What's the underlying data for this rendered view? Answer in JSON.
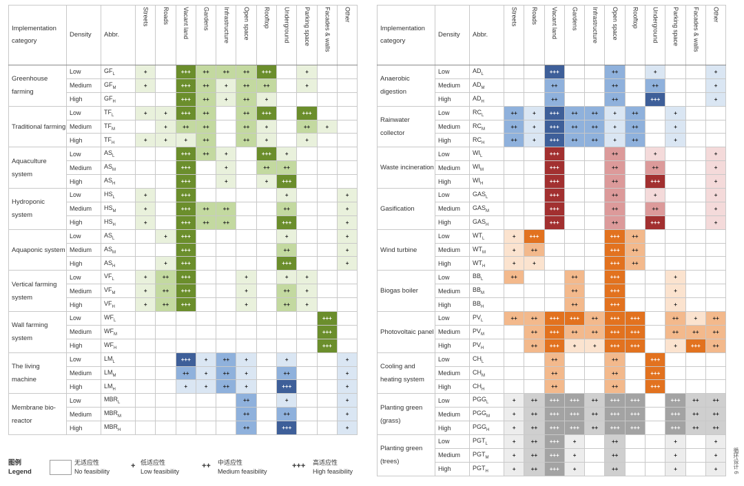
{
  "columns": [
    "Streets",
    "Roads",
    "Vacant land",
    "Gardens",
    "Infrastructure",
    "Open space",
    "Rooftop",
    "Underground",
    "Parking space",
    "Facades & walls",
    "Other"
  ],
  "header": {
    "category": "Implementation category",
    "density": "Density",
    "abbr": "Abbr."
  },
  "colors": {
    "green": [
      "#ffffff",
      "#e9f1dc",
      "#c3d9a0",
      "#6b8e2c"
    ],
    "blue": [
      "#ffffff",
      "#dae6f3",
      "#8fb1dc",
      "#3e5f99"
    ],
    "red": [
      "#ffffff",
      "#f4dada",
      "#dc9a9a",
      "#a23030"
    ],
    "orange": [
      "#ffffff",
      "#fbe3cf",
      "#f3b98c",
      "#e2721f"
    ],
    "gray": [
      "#ffffff",
      "#ededed",
      "#cfcfcf",
      "#a3a3a3"
    ]
  },
  "symbols": [
    "",
    "+",
    "++",
    "+++"
  ],
  "left_groups": [
    {
      "name": "Greenhouse farming",
      "color": "green",
      "rows": [
        {
          "density": "Low",
          "abbr": "GF",
          "sub": "L",
          "values": [
            1,
            0,
            3,
            2,
            2,
            2,
            3,
            0,
            1,
            0,
            0
          ]
        },
        {
          "density": "Medium",
          "abbr": "GF",
          "sub": "M",
          "values": [
            1,
            0,
            3,
            2,
            1,
            2,
            2,
            0,
            1,
            0,
            0
          ]
        },
        {
          "density": "High",
          "abbr": "GF",
          "sub": "H",
          "values": [
            0,
            0,
            3,
            2,
            1,
            2,
            1,
            0,
            0,
            0,
            0
          ]
        }
      ]
    },
    {
      "name": "Traditional farming",
      "color": "green",
      "rows": [
        {
          "density": "Low",
          "abbr": "TF",
          "sub": "L",
          "values": [
            1,
            1,
            3,
            2,
            0,
            2,
            3,
            0,
            3,
            0,
            0
          ]
        },
        {
          "density": "Medium",
          "abbr": "TF",
          "sub": "M",
          "values": [
            0,
            1,
            2,
            2,
            0,
            2,
            1,
            0,
            2,
            1,
            0
          ]
        },
        {
          "density": "High",
          "abbr": "TF",
          "sub": "H",
          "values": [
            1,
            1,
            1,
            2,
            0,
            2,
            1,
            0,
            1,
            0,
            0
          ]
        }
      ]
    },
    {
      "name": "Aquaculture system",
      "color": "green",
      "rows": [
        {
          "density": "Low",
          "abbr": "AS",
          "sub": "L",
          "values": [
            0,
            0,
            3,
            2,
            1,
            0,
            3,
            1,
            0,
            0,
            0
          ]
        },
        {
          "density": "Medium",
          "abbr": "AS",
          "sub": "M",
          "values": [
            0,
            0,
            3,
            0,
            1,
            0,
            2,
            2,
            0,
            0,
            0
          ]
        },
        {
          "density": "High",
          "abbr": "AS",
          "sub": "H",
          "values": [
            0,
            0,
            3,
            0,
            1,
            0,
            1,
            3,
            0,
            0,
            0
          ]
        }
      ]
    },
    {
      "name": "Hydroponic system",
      "color": "green",
      "rows": [
        {
          "density": "Low",
          "abbr": "HS",
          "sub": "L",
          "values": [
            1,
            0,
            3,
            0,
            0,
            0,
            0,
            1,
            0,
            0,
            1
          ]
        },
        {
          "density": "Medium",
          "abbr": "HS",
          "sub": "M",
          "values": [
            1,
            0,
            3,
            2,
            2,
            0,
            0,
            2,
            0,
            0,
            1
          ]
        },
        {
          "density": "High",
          "abbr": "HS",
          "sub": "H",
          "values": [
            1,
            0,
            3,
            2,
            2,
            0,
            0,
            3,
            0,
            0,
            1
          ]
        }
      ]
    },
    {
      "name": "Aquaponic system",
      "color": "green",
      "rows": [
        {
          "density": "Low",
          "abbr": "AS",
          "sub": "L",
          "values": [
            0,
            1,
            3,
            0,
            0,
            0,
            0,
            1,
            0,
            0,
            1
          ]
        },
        {
          "density": "Medium",
          "abbr": "AS",
          "sub": "M",
          "values": [
            0,
            0,
            3,
            0,
            0,
            0,
            0,
            2,
            0,
            0,
            1
          ]
        },
        {
          "density": "High",
          "abbr": "AS",
          "sub": "H",
          "values": [
            0,
            1,
            3,
            0,
            0,
            0,
            0,
            3,
            0,
            0,
            1
          ]
        }
      ]
    },
    {
      "name": "Vertical farming system",
      "color": "green",
      "rows": [
        {
          "density": "Low",
          "abbr": "VF",
          "sub": "L",
          "values": [
            1,
            2,
            3,
            0,
            0,
            1,
            0,
            1,
            1,
            0,
            0
          ]
        },
        {
          "density": "Medium",
          "abbr": "VF",
          "sub": "M",
          "values": [
            1,
            2,
            3,
            0,
            0,
            1,
            0,
            2,
            1,
            0,
            0
          ]
        },
        {
          "density": "High",
          "abbr": "VF",
          "sub": "H",
          "values": [
            1,
            2,
            3,
            0,
            0,
            1,
            0,
            2,
            1,
            0,
            0
          ]
        }
      ]
    },
    {
      "name": "Wall farming system",
      "color": "green",
      "rows": [
        {
          "density": "Low",
          "abbr": "WF",
          "sub": "L",
          "values": [
            0,
            0,
            0,
            0,
            0,
            0,
            0,
            0,
            0,
            3,
            0
          ]
        },
        {
          "density": "Medium",
          "abbr": "WF",
          "sub": "M",
          "values": [
            0,
            0,
            0,
            0,
            0,
            0,
            0,
            0,
            0,
            3,
            0
          ]
        },
        {
          "density": "High",
          "abbr": "WF",
          "sub": "H",
          "values": [
            0,
            0,
            0,
            0,
            0,
            0,
            0,
            0,
            0,
            3,
            0
          ]
        }
      ]
    },
    {
      "name": "The living machine",
      "color": "blue",
      "rows": [
        {
          "density": "Low",
          "abbr": "LM",
          "sub": "L",
          "values": [
            0,
            0,
            3,
            1,
            2,
            1,
            0,
            1,
            0,
            0,
            1
          ]
        },
        {
          "density": "Medium",
          "abbr": "LM",
          "sub": "M",
          "values": [
            0,
            0,
            2,
            1,
            2,
            1,
            0,
            2,
            0,
            0,
            1
          ]
        },
        {
          "density": "High",
          "abbr": "LM",
          "sub": "H",
          "values": [
            0,
            0,
            1,
            1,
            2,
            1,
            0,
            3,
            0,
            0,
            1
          ]
        }
      ]
    },
    {
      "name": "Membrane bio-reactor",
      "color": "blue",
      "rows": [
        {
          "density": "Low",
          "abbr": "MBR",
          "sub": "L",
          "values": [
            0,
            0,
            0,
            0,
            0,
            2,
            0,
            1,
            0,
            0,
            1
          ]
        },
        {
          "density": "Medium",
          "abbr": "MBR",
          "sub": "M",
          "values": [
            0,
            0,
            0,
            0,
            0,
            2,
            0,
            2,
            0,
            0,
            1
          ]
        },
        {
          "density": "High",
          "abbr": "MBR",
          "sub": "H",
          "values": [
            0,
            0,
            0,
            0,
            0,
            2,
            0,
            3,
            0,
            0,
            1
          ]
        }
      ]
    }
  ],
  "right_groups": [
    {
      "name": "Anaerobic digestion",
      "color": "blue",
      "rows": [
        {
          "density": "Low",
          "abbr": "AD",
          "sub": "L",
          "values": [
            0,
            0,
            3,
            0,
            0,
            2,
            0,
            1,
            0,
            0,
            1
          ]
        },
        {
          "density": "Medium",
          "abbr": "AD",
          "sub": "M",
          "values": [
            0,
            0,
            2,
            0,
            0,
            2,
            0,
            2,
            0,
            0,
            1
          ]
        },
        {
          "density": "High",
          "abbr": "AD",
          "sub": "H",
          "values": [
            0,
            0,
            2,
            0,
            0,
            2,
            0,
            3,
            0,
            0,
            1
          ]
        }
      ]
    },
    {
      "name": "Rainwater collector",
      "color": "blue",
      "rows": [
        {
          "density": "Low",
          "abbr": "RC",
          "sub": "L",
          "values": [
            2,
            1,
            3,
            2,
            2,
            1,
            2,
            0,
            1,
            0,
            0
          ]
        },
        {
          "density": "Medium",
          "abbr": "RC",
          "sub": "M",
          "values": [
            2,
            1,
            3,
            2,
            2,
            1,
            2,
            0,
            1,
            0,
            0
          ]
        },
        {
          "density": "High",
          "abbr": "RC",
          "sub": "H",
          "values": [
            2,
            1,
            3,
            2,
            2,
            1,
            2,
            0,
            1,
            0,
            0
          ]
        }
      ]
    },
    {
      "name": "Waste incineration",
      "color": "red",
      "rows": [
        {
          "density": "Low",
          "abbr": "WI",
          "sub": "L",
          "values": [
            0,
            0,
            3,
            0,
            0,
            2,
            0,
            1,
            0,
            0,
            1
          ]
        },
        {
          "density": "Medium",
          "abbr": "WI",
          "sub": "M",
          "values": [
            0,
            0,
            3,
            0,
            0,
            2,
            0,
            2,
            0,
            0,
            1
          ]
        },
        {
          "density": "High",
          "abbr": "WI",
          "sub": "H",
          "values": [
            0,
            0,
            3,
            0,
            0,
            2,
            0,
            3,
            0,
            0,
            1
          ]
        }
      ]
    },
    {
      "name": "Gasification",
      "color": "red",
      "rows": [
        {
          "density": "Low",
          "abbr": "GAS",
          "sub": "L",
          "values": [
            0,
            0,
            3,
            0,
            0,
            2,
            0,
            1,
            0,
            0,
            1
          ]
        },
        {
          "density": "Medium",
          "abbr": "GAS",
          "sub": "M",
          "values": [
            0,
            0,
            3,
            0,
            0,
            2,
            0,
            2,
            0,
            0,
            1
          ]
        },
        {
          "density": "High",
          "abbr": "GAS",
          "sub": "H",
          "values": [
            0,
            0,
            3,
            0,
            0,
            2,
            0,
            3,
            0,
            0,
            1
          ]
        }
      ]
    },
    {
      "name": "Wind turbine",
      "color": "orange",
      "rows": [
        {
          "density": "Low",
          "abbr": "WT",
          "sub": "L",
          "values": [
            1,
            3,
            0,
            0,
            0,
            3,
            2,
            0,
            0,
            0,
            0
          ]
        },
        {
          "density": "Medium",
          "abbr": "WT",
          "sub": "M",
          "values": [
            1,
            2,
            0,
            0,
            0,
            3,
            2,
            0,
            0,
            0,
            0
          ]
        },
        {
          "density": "High",
          "abbr": "WT",
          "sub": "H",
          "values": [
            1,
            1,
            0,
            0,
            0,
            3,
            2,
            0,
            0,
            0,
            0
          ]
        }
      ]
    },
    {
      "name": "Biogas boiler",
      "color": "orange",
      "rows": [
        {
          "density": "Low",
          "abbr": "BB",
          "sub": "L",
          "values": [
            2,
            0,
            0,
            2,
            0,
            3,
            0,
            0,
            1,
            0,
            0
          ]
        },
        {
          "density": "Medium",
          "abbr": "BB",
          "sub": "M",
          "values": [
            0,
            0,
            0,
            2,
            0,
            3,
            0,
            0,
            1,
            0,
            0
          ]
        },
        {
          "density": "High",
          "abbr": "BB",
          "sub": "H",
          "values": [
            0,
            0,
            0,
            2,
            0,
            3,
            0,
            0,
            1,
            0,
            0
          ]
        }
      ]
    },
    {
      "name": "Photovoltaic panel",
      "color": "orange",
      "rows": [
        {
          "density": "Low",
          "abbr": "PV",
          "sub": "L",
          "values": [
            2,
            2,
            3,
            3,
            2,
            3,
            3,
            0,
            2,
            1,
            2
          ]
        },
        {
          "density": "Medium",
          "abbr": "PV",
          "sub": "M",
          "values": [
            0,
            2,
            3,
            2,
            2,
            3,
            3,
            0,
            2,
            2,
            2
          ]
        },
        {
          "density": "High",
          "abbr": "PV",
          "sub": "H",
          "values": [
            0,
            2,
            3,
            1,
            1,
            3,
            3,
            0,
            1,
            3,
            2
          ]
        }
      ]
    },
    {
      "name": "Cooling and heating system",
      "color": "orange",
      "rows": [
        {
          "density": "Low",
          "abbr": "CH",
          "sub": "L",
          "values": [
            0,
            0,
            2,
            0,
            0,
            2,
            0,
            3,
            0,
            0,
            0
          ]
        },
        {
          "density": "Medium",
          "abbr": "CH",
          "sub": "M",
          "values": [
            0,
            0,
            2,
            0,
            0,
            2,
            0,
            3,
            0,
            0,
            0
          ]
        },
        {
          "density": "High",
          "abbr": "CH",
          "sub": "H",
          "values": [
            0,
            0,
            2,
            0,
            0,
            2,
            0,
            3,
            0,
            0,
            0
          ]
        }
      ]
    },
    {
      "name": "Planting green (grass)",
      "color": "gray",
      "rows": [
        {
          "density": "Low",
          "abbr": "PGG",
          "sub": "L",
          "values": [
            1,
            2,
            3,
            3,
            2,
            3,
            3,
            0,
            3,
            2,
            2
          ]
        },
        {
          "density": "Medium",
          "abbr": "PGG",
          "sub": "M",
          "values": [
            1,
            2,
            3,
            3,
            2,
            3,
            3,
            0,
            3,
            2,
            2
          ]
        },
        {
          "density": "High",
          "abbr": "PGG",
          "sub": "H",
          "values": [
            1,
            2,
            3,
            3,
            2,
            3,
            3,
            0,
            3,
            2,
            2
          ]
        }
      ]
    },
    {
      "name": "Planting green (trees)",
      "color": "gray",
      "rows": [
        {
          "density": "Low",
          "abbr": "PGT",
          "sub": "L",
          "values": [
            1,
            2,
            3,
            1,
            0,
            2,
            0,
            0,
            1,
            0,
            1
          ]
        },
        {
          "density": "Medium",
          "abbr": "PGT",
          "sub": "M",
          "values": [
            1,
            2,
            3,
            1,
            0,
            2,
            0,
            0,
            1,
            0,
            1
          ]
        },
        {
          "density": "High",
          "abbr": "PGT",
          "sub": "H",
          "values": [
            1,
            2,
            3,
            1,
            0,
            2,
            0,
            0,
            1,
            0,
            1
          ]
        }
      ]
    }
  ],
  "legend": {
    "title_cn": "图例",
    "title_en": "Legend",
    "items": [
      {
        "symbol": "",
        "cn": "无适应性",
        "en": "No feasibility"
      },
      {
        "symbol": "+",
        "cn": "低适应性",
        "en": "Low feasibility"
      },
      {
        "symbol": "++",
        "cn": "中适应性",
        "en": "Medium feasibility"
      },
      {
        "symbol": "+++",
        "cn": "高适应性",
        "en": "High feasibility"
      }
    ]
  },
  "side_note": "循环设计 6"
}
